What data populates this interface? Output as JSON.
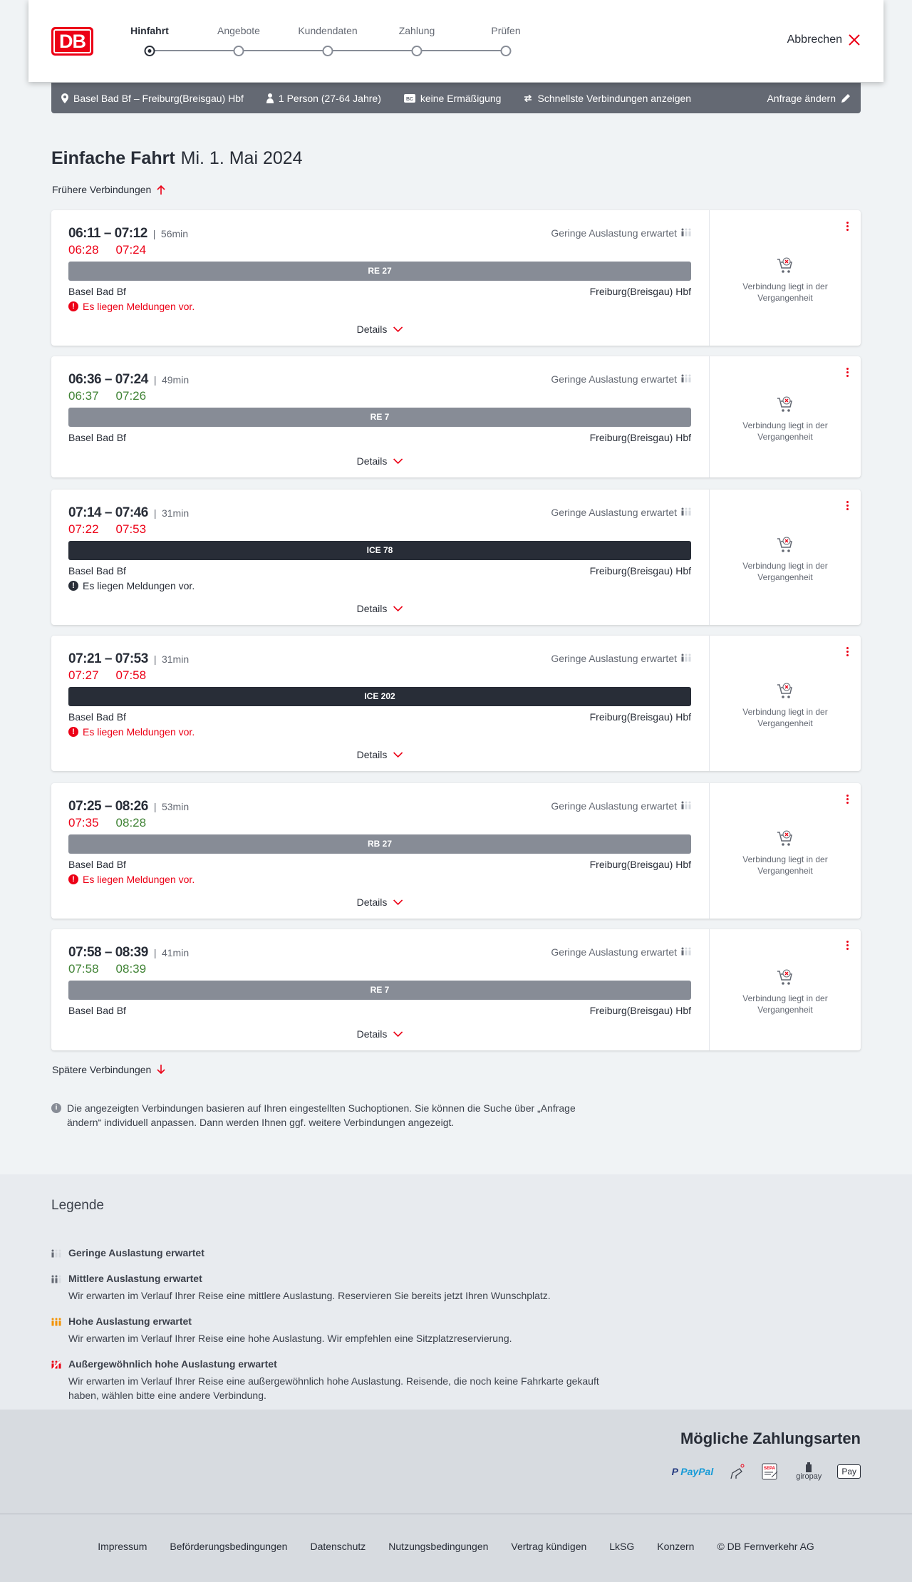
{
  "header": {
    "logo": "DB",
    "steps": [
      "Hinfahrt",
      "Angebote",
      "Kundendaten",
      "Zahlung",
      "Prüfen"
    ],
    "active_step": 0,
    "cancel": "Abbrechen"
  },
  "search": {
    "route": "Basel Bad Bf – Freiburg(Breisgau) Hbf",
    "passengers": "1 Person (27-64 Jahre)",
    "discount": "keine Ermäßigung",
    "option": "Schnellste Verbindungen anzeigen",
    "edit": "Anfrage ändern"
  },
  "page": {
    "title": "Einfache Fahrt",
    "date": "Mi. 1. Mai 2024",
    "earlier": "Frühere Verbindungen",
    "later": "Spätere Verbindungen"
  },
  "colors": {
    "red": "#ec0016",
    "green": "#408335",
    "regional": "#878c96",
    "ice": "#282d37"
  },
  "connections": [
    {
      "planned": "06:11 – 07:12",
      "duration": "56min",
      "dep_rt": "06:28",
      "dep_status": "late",
      "arr_rt": "07:24",
      "arr_status": "late",
      "train": "RE 27",
      "type": "regional",
      "from": "Basel Bad Bf",
      "to": "Freiburg(Breisgau) Hbf",
      "occupancy": "Geringe Auslastung erwartet",
      "message": "Es liegen Meldungen vor.",
      "message_level": "warning",
      "details": "Details",
      "side": "Verbindung liegt in der Vergangenheit"
    },
    {
      "planned": "06:36 – 07:24",
      "duration": "49min",
      "dep_rt": "06:37",
      "dep_status": "ontime",
      "arr_rt": "07:26",
      "arr_status": "ontime",
      "train": "RE 7",
      "type": "regional",
      "from": "Basel Bad Bf",
      "to": "Freiburg(Breisgau) Hbf",
      "occupancy": "Geringe Auslastung erwartet",
      "message": null,
      "details": "Details",
      "side": "Verbindung liegt in der Vergangenheit"
    },
    {
      "planned": "07:14 – 07:46",
      "duration": "31min",
      "dep_rt": "07:22",
      "dep_status": "late",
      "arr_rt": "07:53",
      "arr_status": "late",
      "train": "ICE 78",
      "type": "ice",
      "from": "Basel Bad Bf",
      "to": "Freiburg(Breisgau) Hbf",
      "occupancy": "Geringe Auslastung erwartet",
      "message": "Es liegen Meldungen vor.",
      "message_level": "info",
      "details": "Details",
      "side": "Verbindung liegt in der Vergangenheit"
    },
    {
      "planned": "07:21 – 07:53",
      "duration": "31min",
      "dep_rt": "07:27",
      "dep_status": "late",
      "arr_rt": "07:58",
      "arr_status": "late",
      "train": "ICE 202",
      "type": "ice",
      "from": "Basel Bad Bf",
      "to": "Freiburg(Breisgau) Hbf",
      "occupancy": "Geringe Auslastung erwartet",
      "message": "Es liegen Meldungen vor.",
      "message_level": "warning",
      "details": "Details",
      "side": "Verbindung liegt in der Vergangenheit"
    },
    {
      "planned": "07:25 – 08:26",
      "duration": "53min",
      "dep_rt": "07:35",
      "dep_status": "late",
      "arr_rt": "08:28",
      "arr_status": "ontime",
      "train": "RB 27",
      "type": "regional",
      "from": "Basel Bad Bf",
      "to": "Freiburg(Breisgau) Hbf",
      "occupancy": "Geringe Auslastung erwartet",
      "message": "Es liegen Meldungen vor.",
      "message_level": "warning",
      "details": "Details",
      "side": "Verbindung liegt in der Vergangenheit"
    },
    {
      "planned": "07:58 – 08:39",
      "duration": "41min",
      "dep_rt": "07:58",
      "dep_status": "ontime",
      "arr_rt": "08:39",
      "arr_status": "ontime",
      "train": "RE 7",
      "type": "regional",
      "from": "Basel Bad Bf",
      "to": "Freiburg(Breisgau) Hbf",
      "occupancy": "Geringe Auslastung erwartet",
      "message": null,
      "details": "Details",
      "side": "Verbindung liegt in der Vergangenheit"
    }
  ],
  "info": "Die angezeigten Verbindungen basieren auf Ihren eingestellten Suchoptionen. Sie können die Suche über „Anfrage ändern“ individuell anpassen. Dann werden Ihnen ggf. weitere Verbindungen angezeigt.",
  "legend": {
    "title": "Legende",
    "items": [
      {
        "level": 1,
        "title": "Geringe Auslastung erwartet",
        "text": ""
      },
      {
        "level": 2,
        "title": "Mittlere Auslastung erwartet",
        "text": "Wir erwarten im Verlauf Ihrer Reise eine mittlere Auslastung. Reservieren Sie bereits jetzt Ihren Wunschplatz."
      },
      {
        "level": 3,
        "title": "Hohe Auslastung erwartet",
        "text": "Wir erwarten im Verlauf Ihrer Reise eine hohe Auslastung. Wir empfehlen eine Sitzplatzreservierung."
      },
      {
        "level": 4,
        "title": "Außergewöhnlich hohe Auslastung erwartet",
        "text": "Wir erwarten im Verlauf Ihrer Reise eine außergewöhnlich hohe Auslastung. Reisende, die noch keine Fahrkarte gekauft haben, wählen bitte eine andere Verbindung."
      }
    ]
  },
  "payment": {
    "title": "Mögliche Zahlungsarten",
    "methods": [
      "PayPal",
      "Kreditkarte",
      "SEPA",
      "giropay",
      "Pay"
    ]
  },
  "footer": [
    "Impressum",
    "Beförderungsbedingungen",
    "Datenschutz",
    "Nutzungsbedingungen",
    "Vertrag kündigen",
    "LkSG",
    "Konzern",
    "© DB Fernverkehr AG"
  ]
}
